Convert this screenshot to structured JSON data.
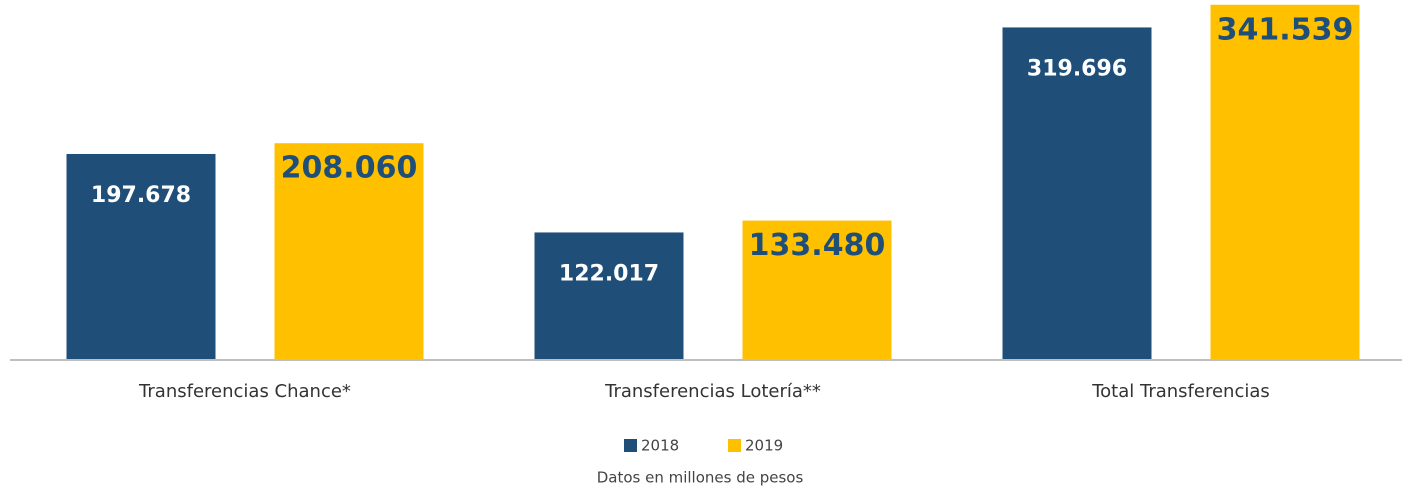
{
  "chart_data": {
    "type": "bar",
    "categories": [
      "Transferencias Chance*",
      "Transferencias Lotería**",
      "Total Transferencias"
    ],
    "series": [
      {
        "name": "2018",
        "color": "#1f4e79",
        "values": [
          197678,
          122017,
          319696
        ],
        "value_labels": [
          "197.678",
          "122.017",
          "319.696"
        ]
      },
      {
        "name": "2019",
        "color": "#ffc000",
        "values": [
          208060,
          133480,
          341539
        ],
        "value_labels": [
          "208.060",
          "133.480",
          "341.539"
        ]
      }
    ],
    "ylim": [
      0,
      350000
    ],
    "note": "Datos en millones de pesos"
  }
}
